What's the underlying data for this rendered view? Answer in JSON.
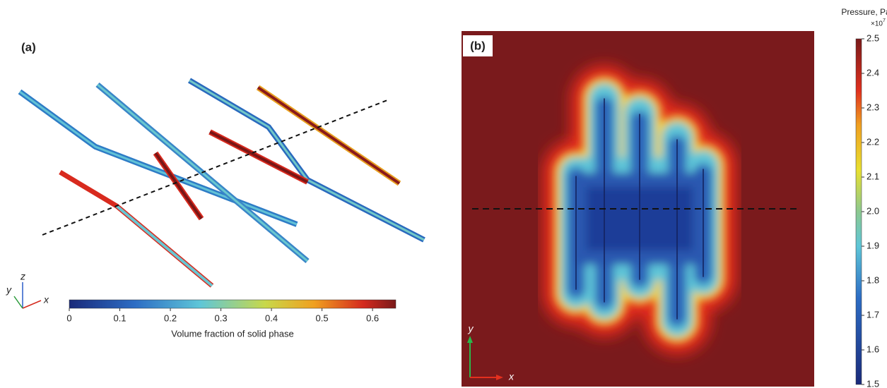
{
  "panel_a": {
    "label": "(a)",
    "axes": {
      "x": "x",
      "y": "y",
      "z": "z"
    },
    "colorbar": {
      "label": "Volume fraction of solid phase",
      "lim": [
        0,
        0.646
      ],
      "ticks": [
        0,
        0.1,
        0.2,
        0.3,
        0.4,
        0.5,
        0.6
      ]
    }
  },
  "panel_b": {
    "label": "(b)",
    "axes": {
      "x": "x",
      "y": "y"
    },
    "colorbar": {
      "title": "Pressure, Pa",
      "multiplier": "×10",
      "exponent": "7",
      "lim": [
        1.5,
        2.5
      ],
      "ticks": [
        1.5,
        1.6,
        1.7,
        1.8,
        1.9,
        {
          "value": 2,
          "label": "2.0"
        },
        2.1,
        2.2,
        2.3,
        2.4,
        2.5
      ]
    }
  }
}
